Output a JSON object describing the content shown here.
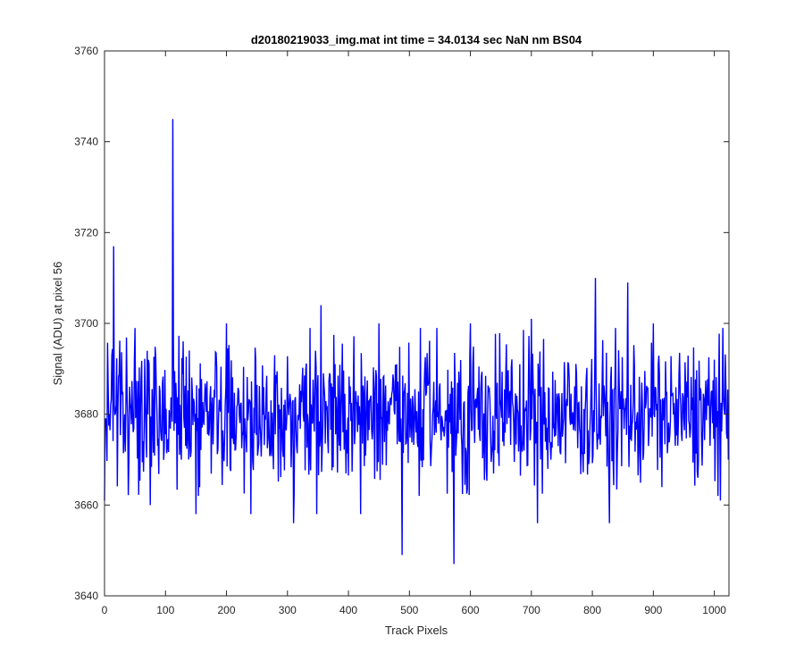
{
  "chart_data": {
    "type": "line",
    "title": "d20180219033_img.mat int time = 34.0134 sec  NaN nm BS04",
    "xlabel": "Track Pixels",
    "ylabel": "Signal (ADU) at pixel 56",
    "xlim": [
      0,
      1024
    ],
    "ylim": [
      3640,
      3760
    ],
    "xticks": [
      0,
      100,
      200,
      300,
      400,
      500,
      600,
      700,
      800,
      900,
      1000
    ],
    "yticks": [
      3640,
      3660,
      3680,
      3700,
      3720,
      3740,
      3760
    ],
    "xtick_labels": [
      "0",
      "100",
      "200",
      "300",
      "400",
      "500",
      "600",
      "700",
      "800",
      "900",
      "1000"
    ],
    "ytick_labels": [
      "3640",
      "3660",
      "3680",
      "3700",
      "3720",
      "3740",
      "3760"
    ],
    "grid": false,
    "legend": "none",
    "series": [
      {
        "color": "#0000ff",
        "x": [
          0,
          15,
          40,
          75,
          110,
          112,
          150,
          200,
          240,
          310,
          348,
          355,
          420,
          450,
          488,
          500,
          573,
          600,
          700,
          710,
          805,
          828,
          858,
          900,
          1000,
          1010,
          1023
        ],
        "y": [
          3661,
          3717,
          3670,
          3660,
          3683,
          3745,
          3658,
          3700,
          3658,
          3656,
          3658,
          3704,
          3658,
          3700,
          3649,
          3680,
          3647,
          3700,
          3701,
          3656,
          3710,
          3656,
          3709,
          3700,
          3692,
          3661,
          3670
        ]
      }
    ]
  }
}
